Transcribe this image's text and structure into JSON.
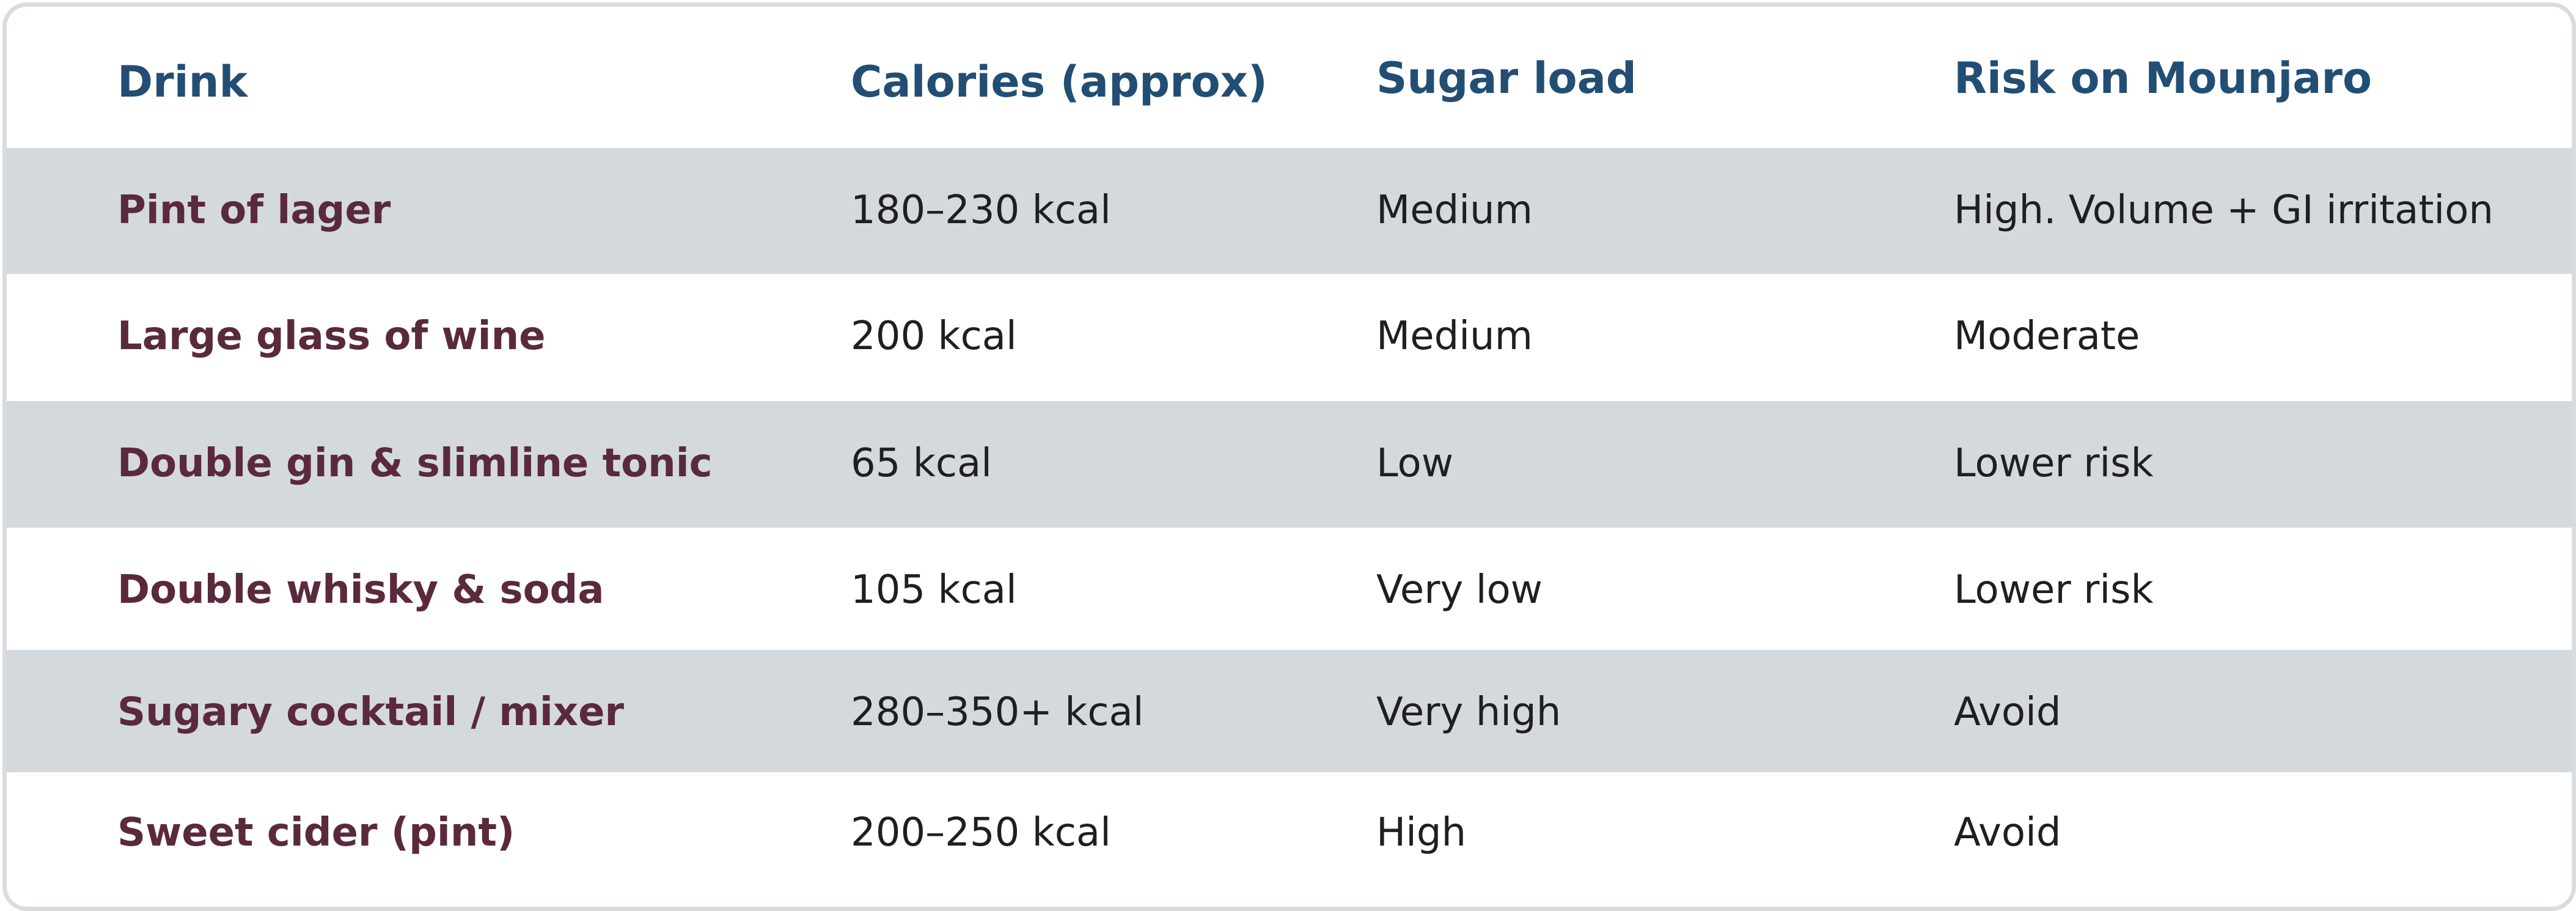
{
  "table": {
    "headers": [
      "Drink",
      "Calories (approx)",
      "Sugar load",
      "Risk on Mounjaro"
    ],
    "rows": [
      {
        "drink": "Pint of lager",
        "calories": "180–230 kcal",
        "sugar": "Medium",
        "risk": "High. Volume + GI irritation"
      },
      {
        "drink": "Large glass of wine",
        "calories": "200 kcal",
        "sugar": "Medium",
        "risk": "Moderate"
      },
      {
        "drink": "Double gin & slimline tonic",
        "calories": "65 kcal",
        "sugar": "Low",
        "risk": "Lower risk"
      },
      {
        "drink": "Double whisky & soda",
        "calories": "105 kcal",
        "sugar": "Very low",
        "risk": "Lower risk"
      },
      {
        "drink": "Sugary cocktail / mixer",
        "calories": "280–350+ kcal",
        "sugar": "Very high",
        "risk": "Avoid"
      },
      {
        "drink": "Sweet cider (pint)",
        "calories": "200–250 kcal",
        "sugar": "High",
        "risk": "Avoid"
      }
    ]
  },
  "colors": {
    "header_text": "#234e74",
    "drink_text": "#5a2a3c",
    "body_text": "#1f1f1f",
    "shaded_row": "#d4d9de",
    "border": "#d8dce0"
  }
}
